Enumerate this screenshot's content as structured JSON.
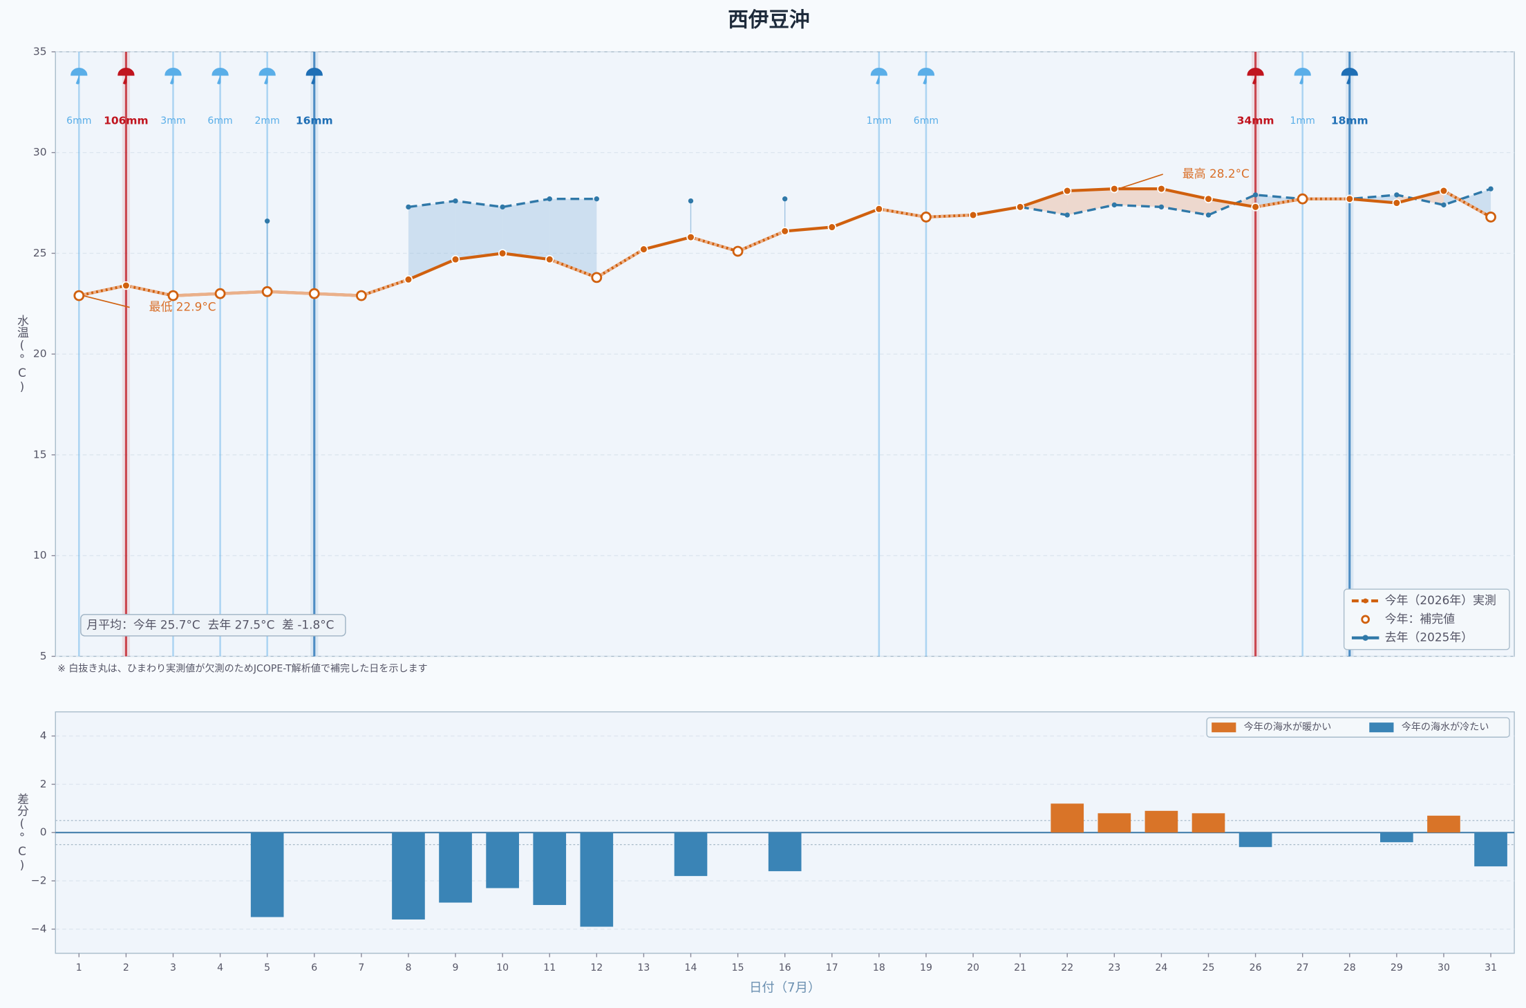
{
  "chart_data": [
    {
      "type": "line",
      "title": "西伊豆沖",
      "ylabel": "水温(°C)",
      "ylim": [
        5,
        35
      ],
      "yticks": [
        5,
        10,
        15,
        20,
        25,
        30,
        35
      ],
      "grid": true,
      "series": [
        {
          "name": "今年（2026年）実測",
          "color": "#d0600e",
          "values": [
            22.9,
            23.4,
            22.9,
            23.0,
            23.1,
            23.0,
            22.9,
            23.7,
            24.7,
            25.0,
            24.7,
            23.8,
            25.2,
            25.8,
            25.1,
            26.1,
            26.3,
            27.2,
            26.8,
            26.9,
            27.3,
            28.1,
            28.2,
            28.2,
            27.7,
            27.3,
            27.7,
            27.7,
            27.5,
            28.1,
            26.8
          ],
          "imputed": [
            true,
            false,
            true,
            true,
            true,
            true,
            true,
            false,
            false,
            false,
            false,
            true,
            false,
            false,
            true,
            false,
            false,
            false,
            true,
            false,
            false,
            false,
            false,
            false,
            false,
            false,
            true,
            false,
            false,
            false,
            true
          ]
        },
        {
          "name": "去年（2025年）",
          "color": "#2f78a8",
          "values": [
            null,
            null,
            null,
            null,
            26.6,
            null,
            null,
            27.3,
            27.6,
            27.3,
            27.7,
            27.7,
            null,
            27.6,
            null,
            27.7,
            null,
            null,
            null,
            null,
            27.3,
            26.9,
            27.4,
            27.3,
            26.9,
            27.9,
            27.7,
            27.7,
            27.9,
            27.4,
            28.2
          ]
        }
      ],
      "imputed_name": "今年：補完値",
      "rain": {
        "days": [
          1,
          2,
          3,
          4,
          5,
          6,
          18,
          19,
          26,
          27,
          28
        ],
        "values": [
          6,
          106,
          3,
          6,
          2,
          16,
          1,
          6,
          34,
          1,
          18
        ],
        "value_labels": [
          "6mm",
          "106mm",
          "3mm",
          "6mm",
          "2mm",
          "16mm",
          "1mm",
          "6mm",
          "34mm",
          "1mm",
          "18mm"
        ],
        "colors": [
          "#5aaee8",
          "#c0141e",
          "#5aaee8",
          "#5aaee8",
          "#5aaee8",
          "#1f6fb5",
          "#5aaee8",
          "#5aaee8",
          "#c0141e",
          "#5aaee8",
          "#1f6fb5"
        ]
      },
      "annotations": [
        {
          "text": "最低 22.9°C",
          "day": 1,
          "value": 22.9
        },
        {
          "text": "最高 28.2°C",
          "day": 23,
          "value": 28.2
        }
      ],
      "summary": "月平均：今年 25.7°C  去年 27.5°C  差 -1.8°C",
      "note": "※ 白抜き丸は、ひまわり実測値が欠測のためJCOPE-T解析値で補完した日を示します",
      "legend": "lower right"
    },
    {
      "type": "bar",
      "xlabel": "日付（7月）",
      "ylabel": "差分(°C)",
      "categories": [
        "1",
        "2",
        "3",
        "4",
        "5",
        "6",
        "7",
        "8",
        "9",
        "10",
        "11",
        "12",
        "13",
        "14",
        "15",
        "16",
        "17",
        "18",
        "19",
        "20",
        "21",
        "22",
        "23",
        "24",
        "25",
        "26",
        "27",
        "28",
        "29",
        "30",
        "31"
      ],
      "values": [
        null,
        null,
        null,
        null,
        -3.5,
        null,
        null,
        -3.6,
        -2.9,
        -2.3,
        -3.0,
        -3.9,
        null,
        -1.8,
        null,
        -1.6,
        null,
        null,
        null,
        null,
        0,
        1.2,
        0.8,
        0.9,
        0.8,
        -0.6,
        0,
        0,
        -0.4,
        0.7,
        -1.4
      ],
      "ylim": [
        -5,
        5
      ],
      "yticks": [
        {
          "value": -4,
          "label": "−4"
        },
        {
          "value": -2,
          "label": "−2"
        },
        0,
        2,
        4
      ],
      "reference_lines": [
        -0.5,
        0.5
      ],
      "grid": true,
      "legend_entries": [
        {
          "name": "今年の海水が暖かい",
          "color": "#d97428"
        },
        {
          "name": "今年の海水が冷たい",
          "color": "#3a84b6"
        }
      ],
      "legend": "upper right"
    }
  ]
}
